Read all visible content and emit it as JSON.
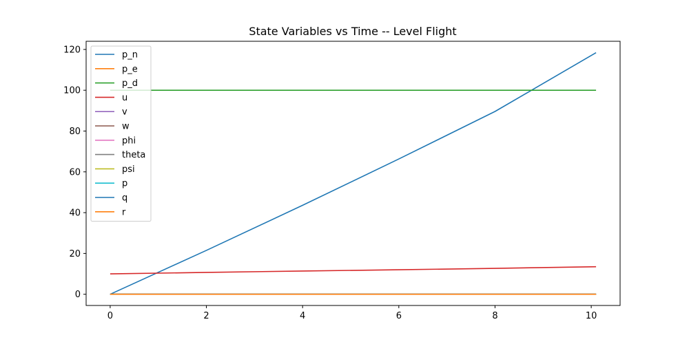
{
  "chart_data": {
    "type": "line",
    "title": "State Variables vs Time -- Level Flight",
    "xlabel": "",
    "ylabel": "",
    "xlim": [
      -0.5,
      10.6
    ],
    "ylim": [
      -5.5,
      124
    ],
    "xticks": [
      0,
      2,
      4,
      6,
      8,
      10
    ],
    "yticks": [
      0,
      20,
      40,
      60,
      80,
      100,
      120
    ],
    "x": [
      0,
      2,
      4,
      6,
      8,
      10.1
    ],
    "grid": false,
    "legend_position": "upper-left",
    "series": [
      {
        "name": "p_n",
        "color": "#1f77b4",
        "values": [
          0,
          21.5,
          43.6,
          66.3,
          89.6,
          118.4
        ]
      },
      {
        "name": "p_e",
        "color": "#ff7f0e",
        "values": [
          0,
          0,
          0,
          0,
          0,
          0
        ]
      },
      {
        "name": "p_d",
        "color": "#2ca02c",
        "values": [
          100,
          100,
          100,
          100,
          100,
          100
        ]
      },
      {
        "name": "u",
        "color": "#d62728",
        "values": [
          10,
          10.7,
          11.4,
          12.0,
          12.7,
          13.5
        ]
      },
      {
        "name": "v",
        "color": "#9467bd",
        "values": [
          0,
          0,
          0,
          0,
          0,
          0
        ]
      },
      {
        "name": "w",
        "color": "#8c564b",
        "values": [
          0,
          0,
          0,
          0,
          0,
          0
        ]
      },
      {
        "name": "phi",
        "color": "#e377c2",
        "values": [
          0,
          0,
          0,
          0,
          0,
          0
        ]
      },
      {
        "name": "theta",
        "color": "#7f7f7f",
        "values": [
          0,
          0,
          0,
          0,
          0,
          0
        ]
      },
      {
        "name": "psi",
        "color": "#bcbd22",
        "values": [
          0,
          0,
          0,
          0,
          0,
          0
        ]
      },
      {
        "name": "p",
        "color": "#17becf",
        "values": [
          0,
          0,
          0,
          0,
          0,
          0
        ]
      },
      {
        "name": "q",
        "color": "#1f77b4",
        "values": [
          0,
          0,
          0,
          0,
          0,
          0
        ]
      },
      {
        "name": "r",
        "color": "#ff7f0e",
        "values": [
          0,
          0,
          0,
          0,
          0,
          0
        ]
      }
    ]
  }
}
